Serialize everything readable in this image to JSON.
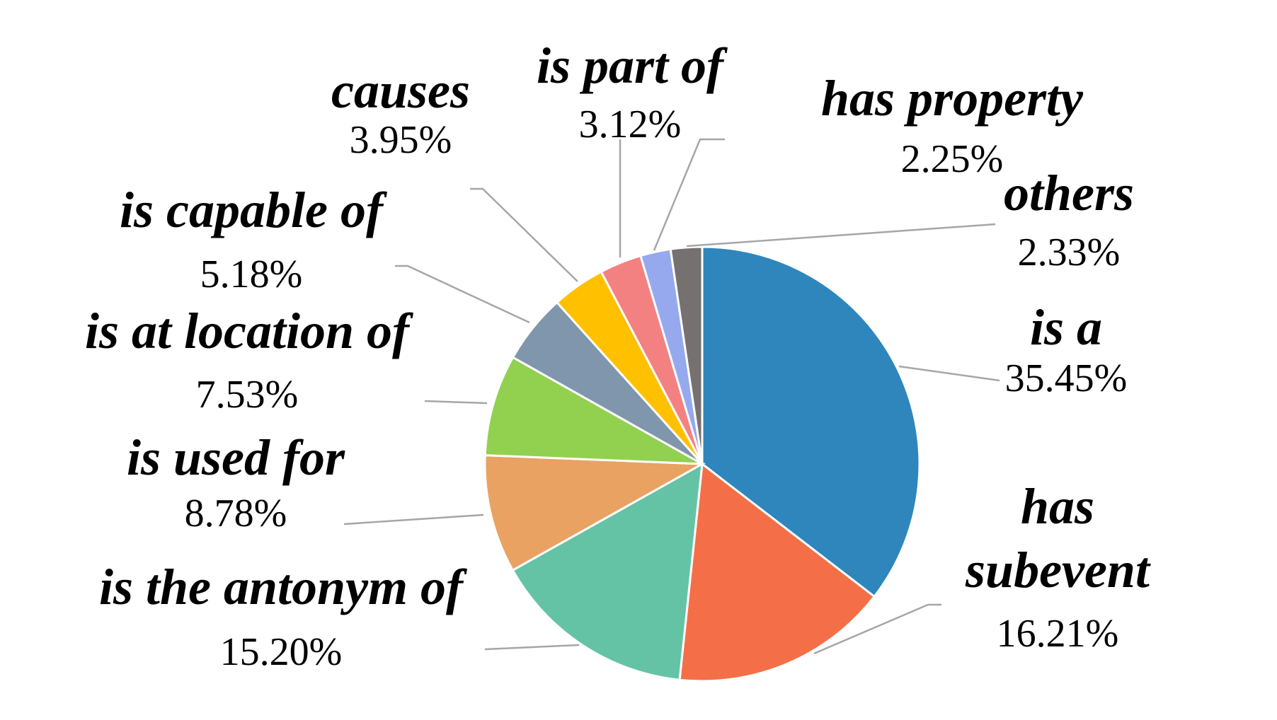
{
  "chart_data": {
    "type": "pie",
    "start_angle_deg": 0,
    "direction": "clockwise",
    "slices": [
      {
        "label": "is a",
        "value": 35.45,
        "value_label": "35.45%",
        "color": "#2E86BC"
      },
      {
        "label": "has subevent",
        "value": 16.21,
        "value_label": "16.21%",
        "color": "#F46F47"
      },
      {
        "label": "is the antonym of",
        "value": 15.2,
        "value_label": "15.20%",
        "color": "#65C3A5"
      },
      {
        "label": "is used for",
        "value": 8.78,
        "value_label": "8.78%",
        "color": "#E9A262"
      },
      {
        "label": "is at location of",
        "value": 7.53,
        "value_label": "7.53%",
        "color": "#92D050"
      },
      {
        "label": "is capable of",
        "value": 5.18,
        "value_label": "5.18%",
        "color": "#7F96AC"
      },
      {
        "label": "causes",
        "value": 3.95,
        "value_label": "3.95%",
        "color": "#FFC000"
      },
      {
        "label": "is part of",
        "value": 3.12,
        "value_label": "3.12%",
        "color": "#F48181"
      },
      {
        "label": "has property",
        "value": 2.25,
        "value_label": "2.25%",
        "color": "#96A9EE"
      },
      {
        "label": "others",
        "value": 2.33,
        "value_label": "2.33%",
        "color": "#767171"
      }
    ]
  }
}
